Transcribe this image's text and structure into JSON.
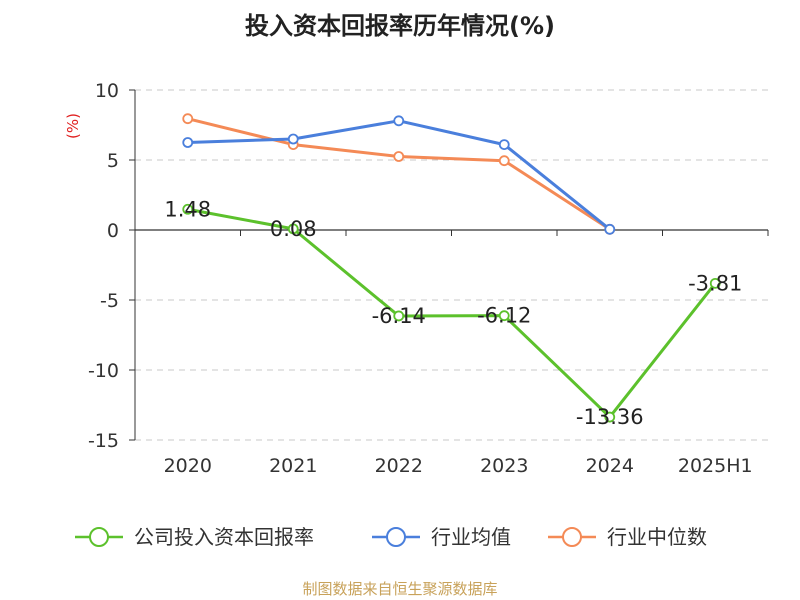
{
  "chart_data": {
    "type": "line",
    "title": "投入资本回报率历年情况(%)",
    "ylabel": "(%)",
    "xlabel": "",
    "categories": [
      "2020",
      "2021",
      "2022",
      "2023",
      "2024",
      "2025H1"
    ],
    "ylim": [
      -15,
      10
    ],
    "yticks": [
      10,
      5,
      0,
      -5,
      -10,
      -15
    ],
    "grid": true,
    "legend_position": "bottom",
    "series": [
      {
        "name": "公司投入资本回报率",
        "color": "#5cc12c",
        "values": [
          1.48,
          0.08,
          -6.14,
          -6.12,
          -13.36,
          -3.81
        ],
        "labels": [
          "1.48",
          "0.08",
          "-6.14",
          "-6.12",
          "-13.36",
          "-3.81"
        ]
      },
      {
        "name": "行业均值",
        "color": "#4a7fdc",
        "values": [
          6.25,
          6.5,
          7.8,
          6.1,
          0.05,
          null
        ]
      },
      {
        "name": "行业中位数",
        "color": "#f48a56",
        "values": [
          7.95,
          6.1,
          5.25,
          4.95,
          0.05,
          null
        ]
      }
    ]
  },
  "footer": "制图数据来自恒生聚源数据库"
}
